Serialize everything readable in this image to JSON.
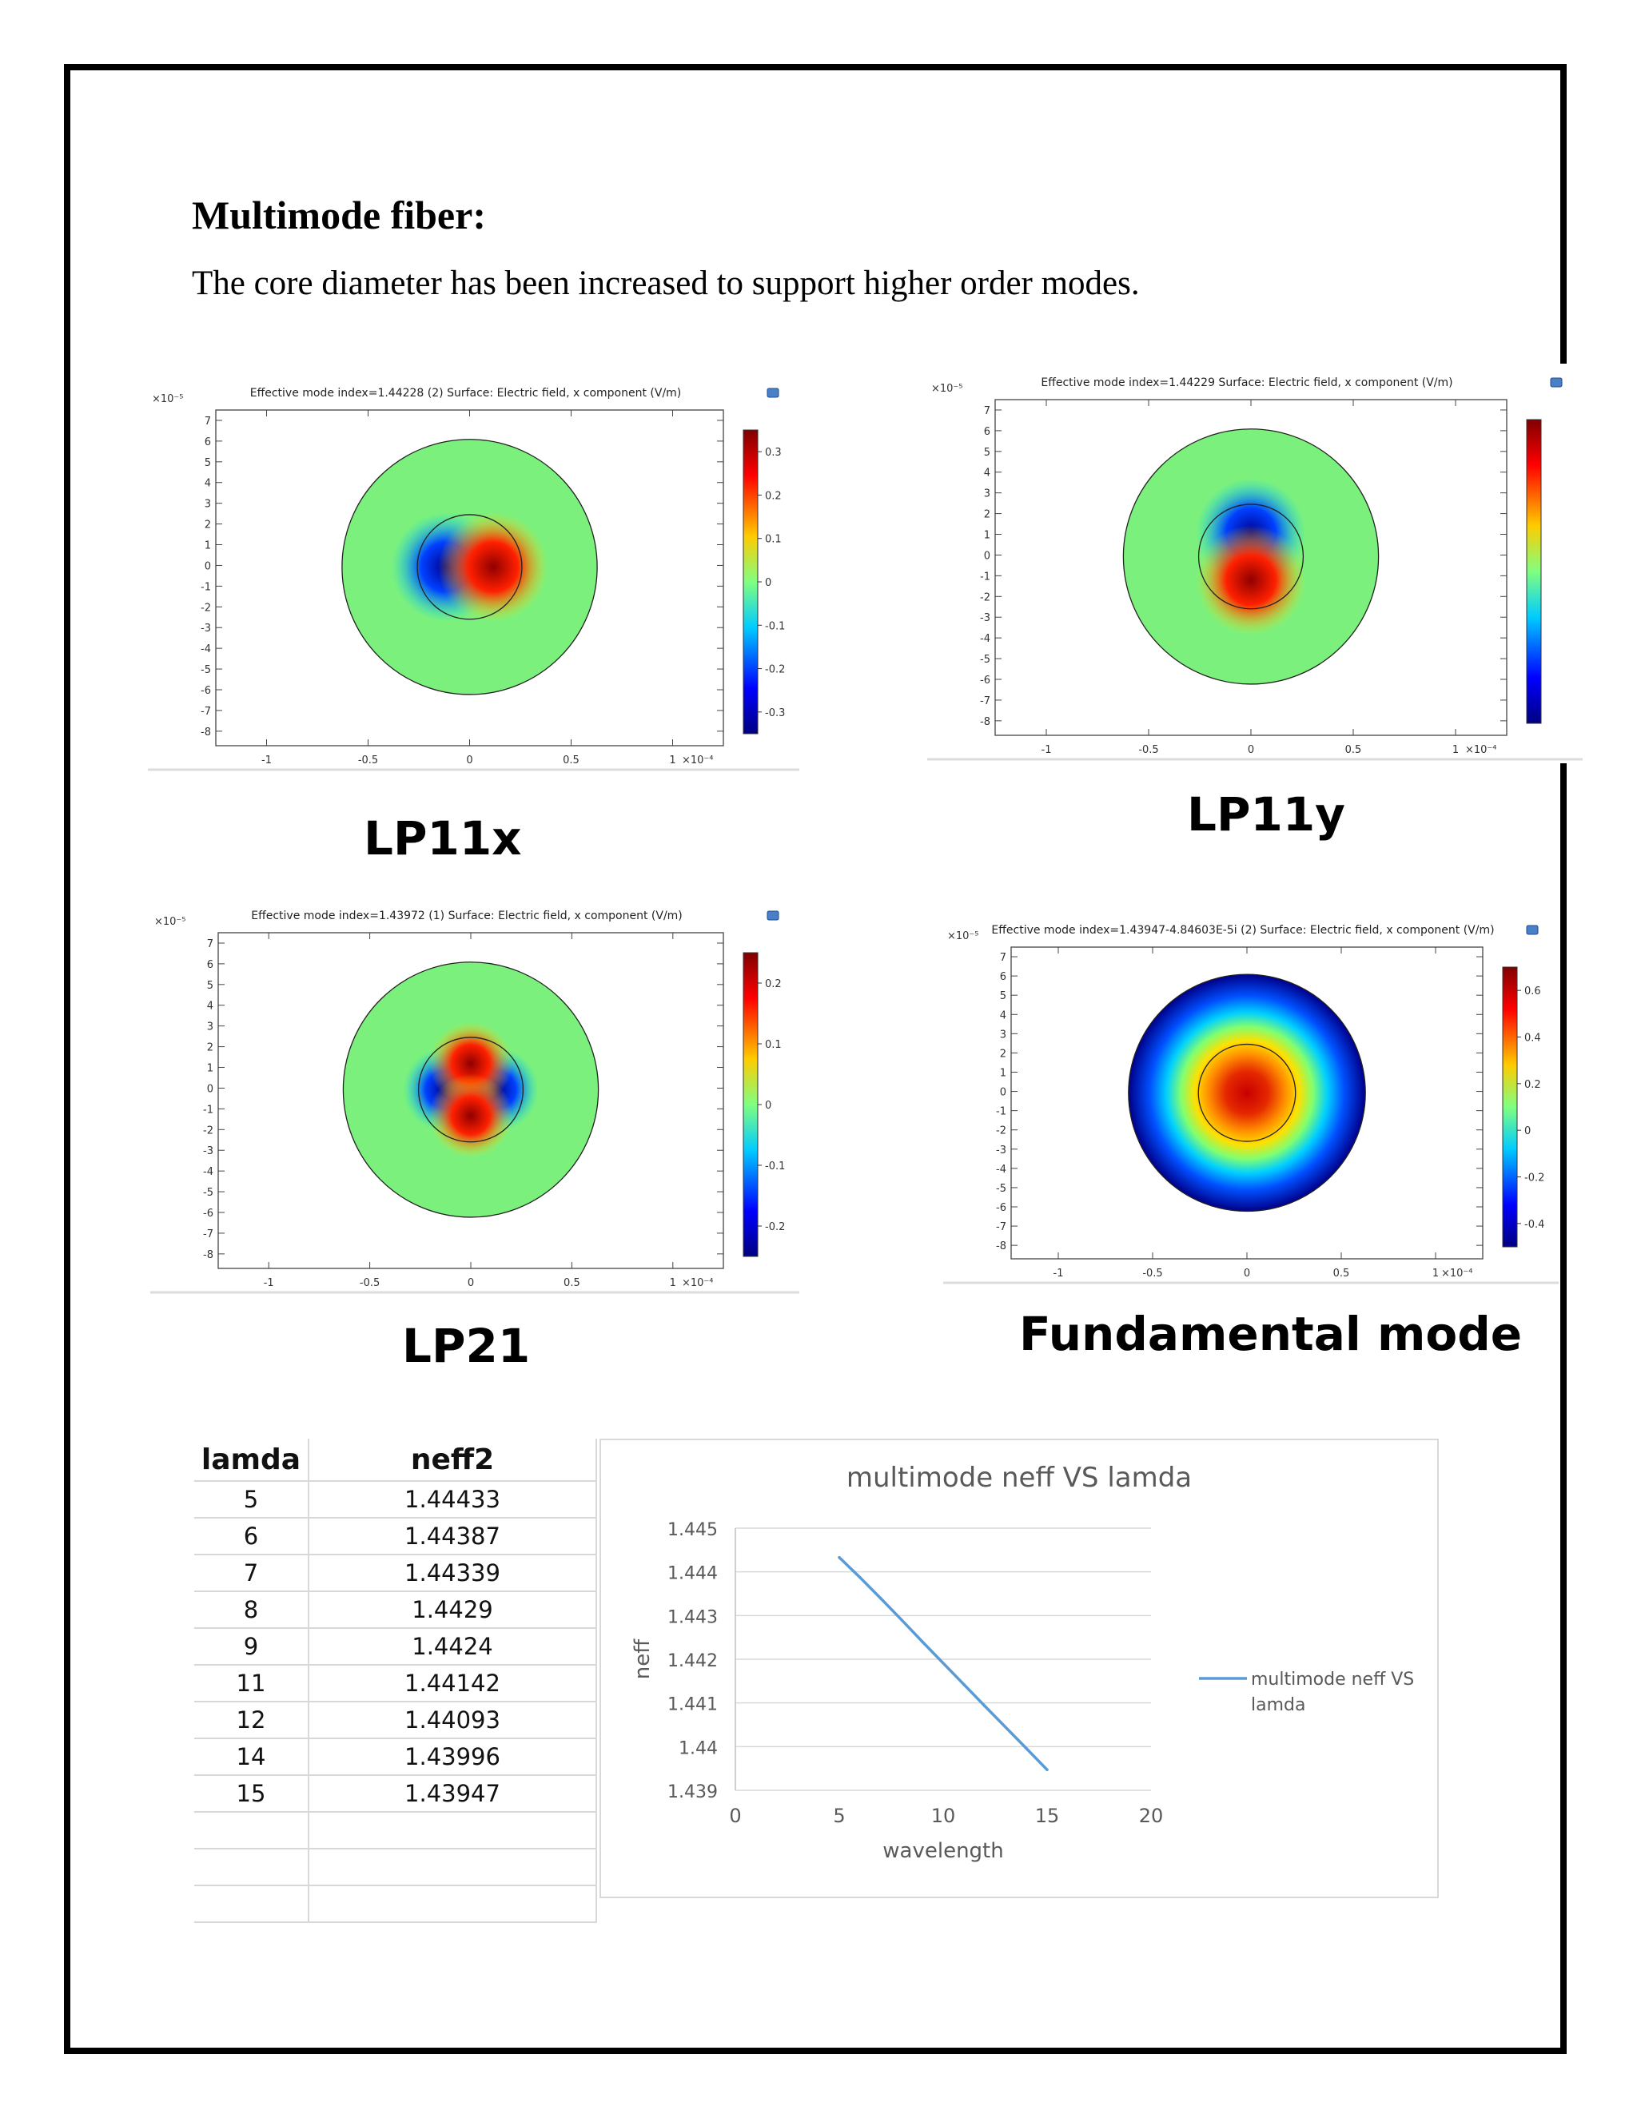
{
  "document": {
    "heading": "Multimode fiber:",
    "intro": "The core diameter has been increased to support higher order modes."
  },
  "mode_plots": [
    {
      "id": "lp11x",
      "title": "Effective mode index=1.44228 (2)   Surface: Electric field, x component (V/m)",
      "caption": "LP11x",
      "y_exponent": "×10⁻⁵",
      "x_exponent": "×10⁻⁴",
      "colorbar_ticks": [
        "0.3",
        "0.2",
        "0.1",
        "0",
        "-0.1",
        "-0.2",
        "-0.3"
      ],
      "pattern": "two-lobe-horizontal"
    },
    {
      "id": "lp11y",
      "title": "Effective mode index=1.44229   Surface: Electric field, x component (V/m)",
      "caption": "LP11y",
      "y_exponent": "×10⁻⁵",
      "x_exponent": "×10⁻⁴",
      "colorbar_ticks": [],
      "pattern": "two-lobe-vertical"
    },
    {
      "id": "lp21",
      "title": "Effective mode index=1.43972 (1)   Surface: Electric field, x component (V/m)",
      "caption": "LP21",
      "y_exponent": "×10⁻⁵",
      "x_exponent": "×10⁻⁴",
      "colorbar_ticks": [
        "0.2",
        "0.1",
        "0",
        "-0.1",
        "-0.2"
      ],
      "pattern": "four-lobe"
    },
    {
      "id": "fundamental",
      "title": "Effective mode index=1.43947-4.84603E-5i (2)   Surface: Electric field, x component (V/m)",
      "caption": "Fundamental mode",
      "y_exponent": "×10⁻⁵",
      "x_exponent": "×10⁻⁴",
      "colorbar_ticks": [
        "0.6",
        "0.4",
        "0.2",
        "0",
        "-0.2",
        "-0.4"
      ],
      "pattern": "gaussian"
    }
  ],
  "mode_axes": {
    "x_ticks": [
      "-1",
      "-0.5",
      "0",
      "0.5",
      "1"
    ],
    "y_ticks": [
      "7",
      "6",
      "5",
      "4",
      "3",
      "2",
      "1",
      "0",
      "-1",
      "-2",
      "-3",
      "-4",
      "-5",
      "-6",
      "-7",
      "-8"
    ]
  },
  "table": {
    "headers": [
      "lamda",
      "neff2"
    ],
    "rows": [
      [
        "5",
        "1.44433"
      ],
      [
        "6",
        "1.44387"
      ],
      [
        "7",
        "1.44339"
      ],
      [
        "8",
        "1.4429"
      ],
      [
        "9",
        "1.4424"
      ],
      [
        "11",
        "1.44142"
      ],
      [
        "12",
        "1.44093"
      ],
      [
        "14",
        "1.43996"
      ],
      [
        "15",
        "1.43947"
      ],
      [
        "",
        ""
      ],
      [
        "",
        ""
      ],
      [
        "",
        ""
      ]
    ]
  },
  "chart_data": {
    "type": "line",
    "title": "multimode neff VS lamda",
    "xlabel": "wavelength",
    "ylabel": "neff",
    "xlim": [
      0,
      20
    ],
    "ylim": [
      1.439,
      1.445
    ],
    "x_ticks": [
      "0",
      "5",
      "10",
      "15",
      "20"
    ],
    "y_ticks": [
      "1.445",
      "1.444",
      "1.443",
      "1.442",
      "1.441",
      "1.44",
      "1.439"
    ],
    "grid": true,
    "legend_position": "right",
    "series": [
      {
        "name": "multimode neff VS lamda",
        "color": "#5b9bd5",
        "x": [
          5,
          6,
          7,
          8,
          9,
          11,
          12,
          14,
          15
        ],
        "y": [
          1.44433,
          1.44387,
          1.44339,
          1.4429,
          1.4424,
          1.44142,
          1.44093,
          1.43996,
          1.43947
        ]
      }
    ]
  }
}
